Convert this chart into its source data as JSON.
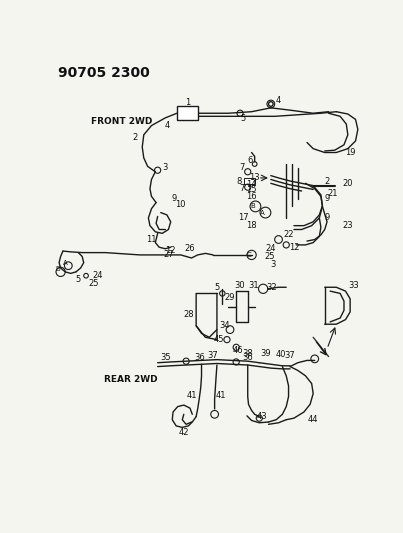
{
  "title": "90705 2300",
  "background_color": "#f5f5f0",
  "line_color": "#1a1a1a",
  "label_color": "#111111",
  "front_label": "FRONT 2WD",
  "rear_label": "REAR 2WD",
  "figsize": [
    4.03,
    5.33
  ],
  "dpi": 100
}
